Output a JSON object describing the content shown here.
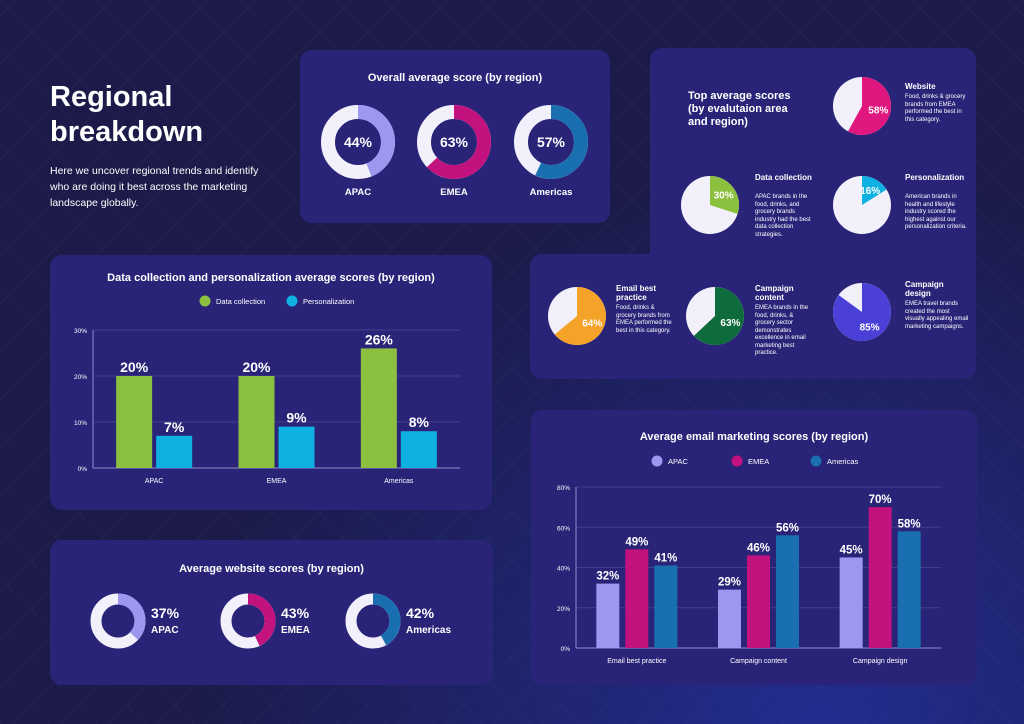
{
  "hero": {
    "title_line1": "Regional",
    "title_line2": "breakdown",
    "description": "Here we uncover regional trends and identify who are doing it best across the marketing landscape globally."
  },
  "colors": {
    "apac": "#9d97f0",
    "emea": "#c1127e",
    "americas": "#1a6fb0",
    "green": "#8cc13f",
    "cyan": "#0fb1e3",
    "ring_bg": "#f2f1fb"
  },
  "chart_data": [
    {
      "id": "overall",
      "type": "pie",
      "title": "Overall average score (by region)",
      "categories": [
        "APAC",
        "EMEA",
        "Americas"
      ],
      "values": [
        44,
        63,
        57
      ],
      "value_labels": [
        "44%",
        "63%",
        "57%"
      ]
    },
    {
      "id": "datacol",
      "type": "bar",
      "title": "Data collection and personalization average scores (by region)",
      "categories": [
        "APAC",
        "EMEA",
        "Americas"
      ],
      "series": [
        {
          "name": "Data collection",
          "values": [
            20,
            20,
            26
          ],
          "labels": [
            "20%",
            "20%",
            "26%"
          ],
          "color": "#8cc13f"
        },
        {
          "name": "Personalization",
          "values": [
            7,
            9,
            8
          ],
          "labels": [
            "7%",
            "9%",
            "8%"
          ],
          "color": "#0fb1e3"
        }
      ],
      "ylim": [
        0,
        30
      ],
      "yticks": [
        "0%",
        "10%",
        "20%",
        "30%"
      ],
      "legend": "top-center"
    },
    {
      "id": "website",
      "type": "pie",
      "title": "Average website scores (by region)",
      "categories": [
        "APAC",
        "EMEA",
        "Americas"
      ],
      "values": [
        37,
        43,
        42
      ],
      "value_labels": [
        "37%",
        "43%",
        "42%"
      ]
    },
    {
      "id": "email",
      "type": "bar",
      "title": "Average email marketing scores (by region)",
      "categories": [
        "Email best practice",
        "Campaign content",
        "Campaign design"
      ],
      "series": [
        {
          "name": "APAC",
          "values": [
            32,
            29,
            45
          ],
          "labels": [
            "32%",
            "29%",
            "45%"
          ],
          "color": "#9d97f0"
        },
        {
          "name": "EMEA",
          "values": [
            49,
            46,
            70
          ],
          "labels": [
            "49%",
            "46%",
            "70%"
          ],
          "color": "#c1127e"
        },
        {
          "name": "Americas",
          "values": [
            41,
            56,
            58
          ],
          "labels": [
            "41%",
            "56%",
            "58%"
          ],
          "color": "#1a6fb0"
        }
      ],
      "ylim": [
        0,
        80
      ],
      "yticks": [
        "0%",
        "20%",
        "40%",
        "60%",
        "80%"
      ],
      "legend": "top-center"
    },
    {
      "id": "top",
      "type": "pie",
      "title_line1": "Top average scores",
      "title_line2": "(by evalutaion area",
      "title_line3": "and region)",
      "items": [
        {
          "heading": "Website",
          "description": "Food, drinks & grocery brands from EMEA performed the best in this category.",
          "value": 58,
          "label": "58%",
          "color": "#e0177f"
        },
        {
          "heading": "Data collection",
          "description": "APAC brands in the food, drinks, and grocery brands industry had the best data collection strategies.",
          "value": 30,
          "label": "30%",
          "color": "#8cc13f"
        },
        {
          "heading": "Personalization",
          "description": "American brands in health and lifestyle industry scored the highest against our personalization criteria.",
          "value": 16,
          "label": "16%",
          "color": "#0fb1e3"
        },
        {
          "heading": "Email best practice",
          "description": "Food, drinks & grocery brands from EMEA performed the best in this category.",
          "value": 64,
          "label": "64%",
          "color": "#f5a229"
        },
        {
          "heading": "Campaign content",
          "description": "EMEA brands in the food, drinks, & grocery sector demonstrates excellence in email marketing best practice.",
          "value": 63,
          "label": "63%",
          "color": "#0e6b3b"
        },
        {
          "heading": "Campaign design",
          "description": "EMEA travel brands created the most visually appealing email marketing campaigns.",
          "value": 85,
          "label": "85%",
          "color": "#4a40d8"
        }
      ]
    }
  ]
}
